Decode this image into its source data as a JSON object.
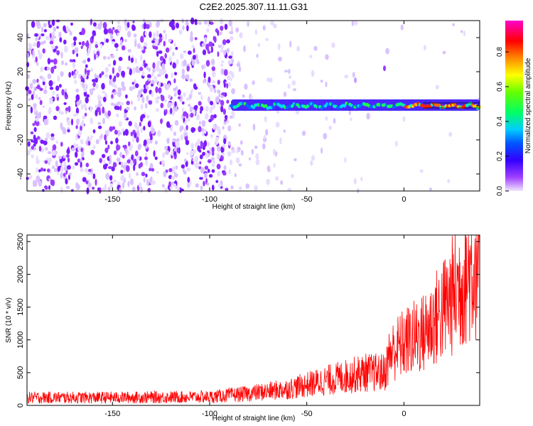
{
  "chart_data": [
    {
      "type": "heatmap",
      "title": "C2E2.2025.307.11.11.G31",
      "xlabel": "Height of straight line (km)",
      "ylabel": "Frequency (Hz)",
      "xlim": [
        -194,
        39
      ],
      "ylim": [
        -50,
        50
      ],
      "x_ticks": [
        -150,
        -100,
        -50,
        0
      ],
      "y_ticks": [
        -40,
        -20,
        0,
        20,
        40
      ],
      "colorbar": {
        "label": "Normalized spectral amplitude",
        "range": [
          0,
          0.98
        ],
        "ticks": [
          0.0,
          0.2,
          0.4,
          0.6,
          0.8
        ]
      },
      "signal_track": {
        "start_km": -89,
        "end_km": 39,
        "frequency_hz": 0,
        "description_points": [
          {
            "x": -89,
            "amp": 0.25
          },
          {
            "x": -70,
            "amp": 0.3
          },
          {
            "x": -50,
            "amp": 0.35
          },
          {
            "x": -25,
            "amp": 0.3
          },
          {
            "x": 0,
            "amp": 0.45
          },
          {
            "x": 20,
            "amp": 0.7
          },
          {
            "x": 39,
            "amp": 0.95
          }
        ]
      }
    },
    {
      "type": "line",
      "series": [
        {
          "name": "SNR",
          "color": "#ff0000"
        }
      ],
      "xlabel": "Height of straight line (km)",
      "ylabel": "SNR (10 * v/v)",
      "xlim": [
        -194,
        39
      ],
      "ylim": [
        0,
        2600
      ],
      "x_ticks": [
        -150,
        -100,
        -50,
        0
      ],
      "y_ticks": [
        0,
        500,
        1000,
        1500,
        2000,
        2500
      ],
      "trend": [
        {
          "x": -194,
          "y": 120
        },
        {
          "x": -150,
          "y": 120
        },
        {
          "x": -100,
          "y": 130
        },
        {
          "x": -80,
          "y": 180
        },
        {
          "x": -60,
          "y": 250
        },
        {
          "x": -40,
          "y": 380
        },
        {
          "x": -20,
          "y": 500
        },
        {
          "x": -10,
          "y": 500
        },
        {
          "x": -7,
          "y": 800
        },
        {
          "x": 0,
          "y": 950
        },
        {
          "x": 10,
          "y": 1100
        },
        {
          "x": 20,
          "y": 1450
        },
        {
          "x": 30,
          "y": 1900
        },
        {
          "x": 39,
          "y": 2250
        }
      ]
    }
  ]
}
